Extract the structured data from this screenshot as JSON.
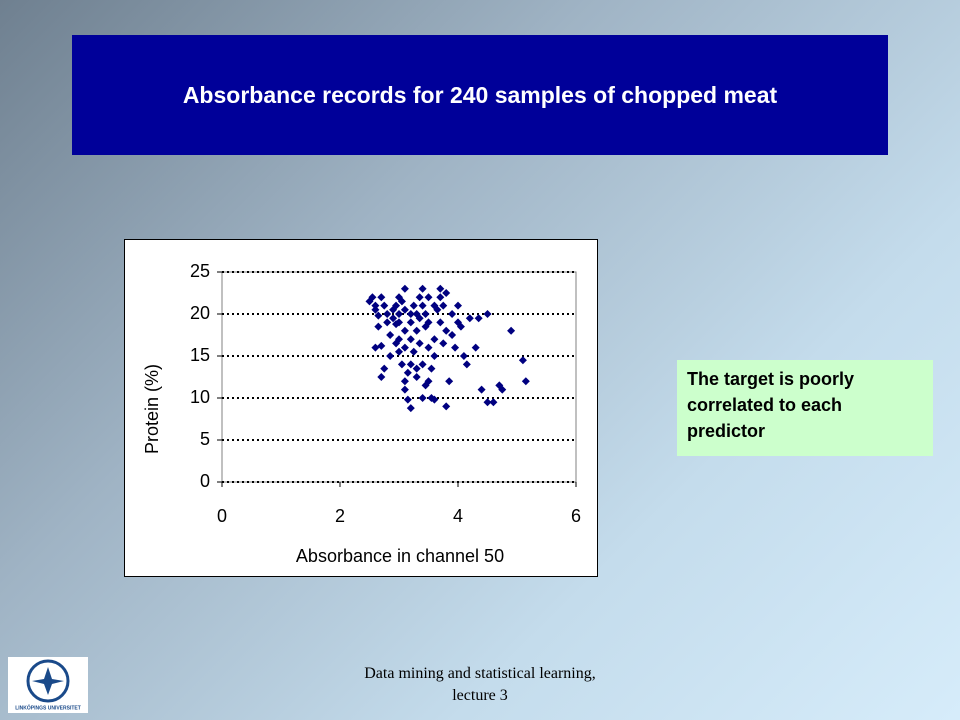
{
  "slide": {
    "title": "Absorbance records for 240 samples of chopped meat",
    "note": "The target is poorly correlated to each predictor",
    "footer": [
      "Data mining and statistical learning,",
      "lecture 3"
    ],
    "logo": "LINKÖPINGS UNIVERSITET"
  },
  "chart_data": {
    "type": "scatter",
    "x_label": "Absorbance in channel 50",
    "y_label": "Protein (%)",
    "color": "#000080",
    "grid": true,
    "xlim": [
      0,
      6
    ],
    "xticks": [
      0,
      2,
      4,
      6
    ],
    "ylim": [
      0,
      25
    ],
    "yticks": [
      0,
      5,
      10,
      15,
      20,
      25
    ],
    "x": [
      2.5,
      2.55,
      2.6,
      2.6,
      2.65,
      2.6,
      2.7,
      2.65,
      2.7,
      2.75,
      2.7,
      2.75,
      2.8,
      2.8,
      2.85,
      2.85,
      2.9,
      2.9,
      2.95,
      2.95,
      2.95,
      3.0,
      3.0,
      3.0,
      3.0,
      3.0,
      3.05,
      3.05,
      3.1,
      3.1,
      3.1,
      3.1,
      3.1,
      3.1,
      3.15,
      3.15,
      3.2,
      3.2,
      3.2,
      3.2,
      3.2,
      3.25,
      3.25,
      3.3,
      3.3,
      3.3,
      3.3,
      3.35,
      3.35,
      3.35,
      3.4,
      3.4,
      3.4,
      3.4,
      3.45,
      3.45,
      3.45,
      3.5,
      3.5,
      3.5,
      3.5,
      3.55,
      3.55,
      3.6,
      3.6,
      3.6,
      3.6,
      3.65,
      3.7,
      3.7,
      3.7,
      3.75,
      3.75,
      3.8,
      3.8,
      3.8,
      3.85,
      3.9,
      3.9,
      3.95,
      4.0,
      4.0,
      4.05,
      4.1,
      4.15,
      4.2,
      4.3,
      4.35,
      4.4,
      4.5,
      4.5,
      4.6,
      4.7,
      4.75,
      4.9,
      5.1,
      5.15
    ],
    "y": [
      21.5,
      22,
      21,
      20.5,
      19.8,
      16,
      16.2,
      18.5,
      22,
      21,
      12.5,
      13.5,
      20,
      19,
      17.5,
      15,
      20.5,
      19.5,
      21,
      18.8,
      16.5,
      22,
      20,
      19,
      17,
      15.5,
      14,
      21.5,
      23,
      20.5,
      18,
      16,
      12,
      11,
      9.8,
      13,
      20,
      19,
      17,
      14,
      8.8,
      21,
      15.5,
      20,
      18,
      13.5,
      12.5,
      22,
      19.5,
      16.5,
      23,
      21,
      14,
      10,
      20,
      18.5,
      11.5,
      22,
      19,
      16,
      12,
      10,
      13.5,
      21,
      17,
      15,
      9.8,
      20.5,
      23,
      22,
      19,
      21,
      16.5,
      22.5,
      18,
      9,
      12,
      20,
      17.5,
      16,
      21,
      19,
      18.5,
      15,
      14,
      19.5,
      16,
      19.5,
      11,
      20,
      9.5,
      9.5,
      11.5,
      11,
      18,
      14.5,
      12
    ]
  }
}
